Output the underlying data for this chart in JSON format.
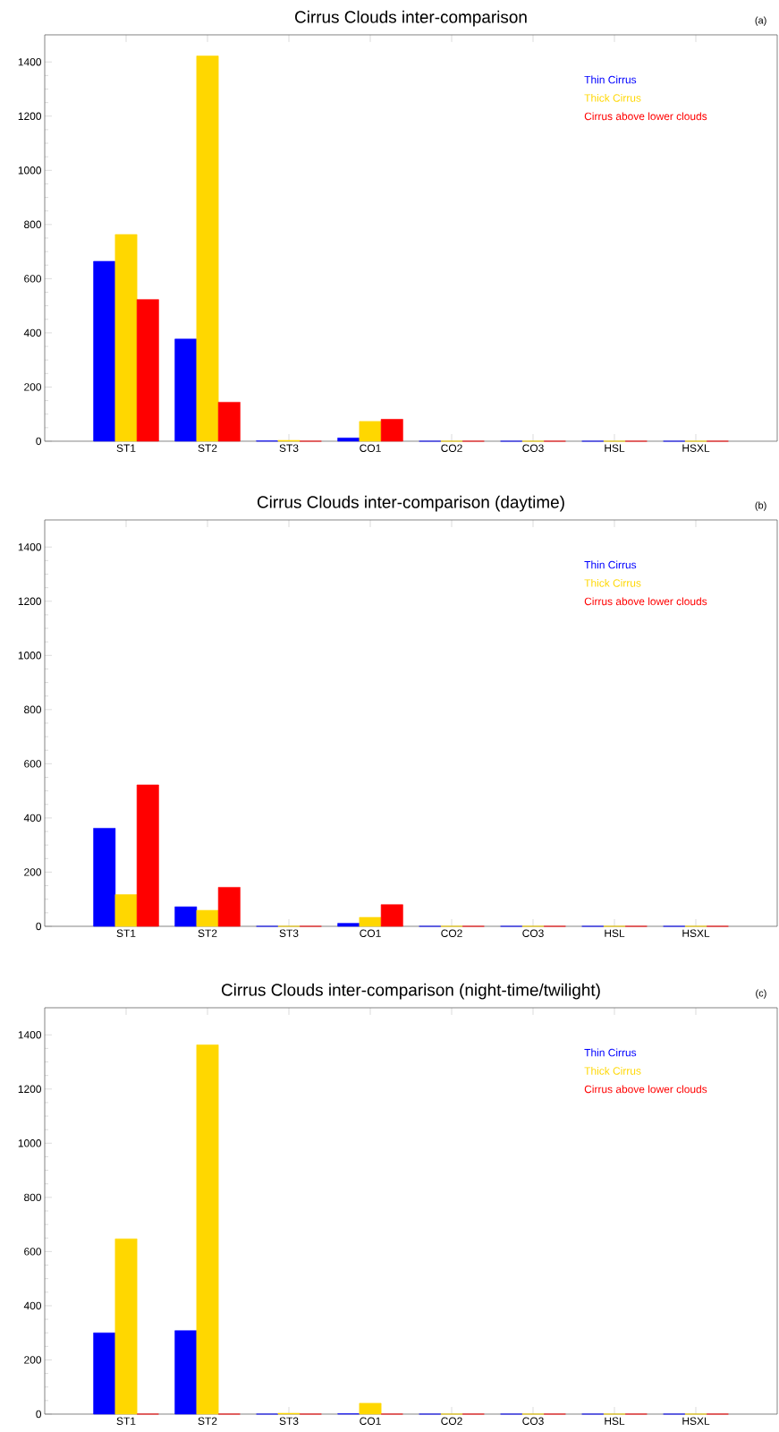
{
  "chart_data": [
    {
      "type": "bar",
      "title": "Cirrus Clouds inter-comparison",
      "annotations": [
        "(a)"
      ],
      "categories": [
        "ST1",
        "ST2",
        "ST3",
        "CO1",
        "CO2",
        "CO3",
        "HSL",
        "HSXL"
      ],
      "series": [
        {
          "name": "Thin Cirrus",
          "color": "#0000ff",
          "values": [
            664,
            377,
            1,
            12,
            0,
            0,
            0,
            0
          ]
        },
        {
          "name": "Thick Cirrus",
          "color": "#ffd700",
          "values": [
            763,
            1422,
            3,
            73,
            0,
            0,
            0,
            0
          ]
        },
        {
          "name": "Cirrus above lower clouds",
          "color": "#ff0000",
          "values": [
            523,
            144,
            0,
            81,
            0,
            0,
            0,
            0
          ]
        }
      ],
      "ylim": [
        0,
        1500
      ],
      "yticks": [
        0,
        200,
        400,
        600,
        800,
        1000,
        1200,
        1400
      ],
      "legend": "top right"
    },
    {
      "type": "bar",
      "title": "Cirrus Clouds inter-comparison (daytime)",
      "annotations": [
        "(b)"
      ],
      "categories": [
        "ST1",
        "ST2",
        "ST3",
        "CO1",
        "CO2",
        "CO3",
        "HSL",
        "HSXL"
      ],
      "series": [
        {
          "name": "Thin Cirrus",
          "color": "#0000ff",
          "values": [
            362,
            72,
            0,
            11,
            0,
            0,
            0,
            0
          ]
        },
        {
          "name": "Thick Cirrus",
          "color": "#ffd700",
          "values": [
            117,
            59,
            0,
            33,
            0,
            0,
            0,
            0
          ]
        },
        {
          "name": "Cirrus above lower clouds",
          "color": "#ff0000",
          "values": [
            522,
            144,
            0,
            80,
            0,
            0,
            0,
            0
          ]
        }
      ],
      "ylim": [
        0,
        1500
      ],
      "yticks": [
        0,
        200,
        400,
        600,
        800,
        1000,
        1200,
        1400
      ],
      "legend": "top right"
    },
    {
      "type": "bar",
      "title": "Cirrus Clouds inter-comparison (night-time/twilight)",
      "annotations": [
        "(c)"
      ],
      "categories": [
        "ST1",
        "ST2",
        "ST3",
        "CO1",
        "CO2",
        "CO3",
        "HSL",
        "HSXL"
      ],
      "series": [
        {
          "name": "Thin Cirrus",
          "color": "#0000ff",
          "values": [
            300,
            308,
            0,
            1,
            0,
            0,
            0,
            0
          ]
        },
        {
          "name": "Thick Cirrus",
          "color": "#ffd700",
          "values": [
            647,
            1363,
            3,
            40,
            0,
            0,
            0,
            0
          ]
        },
        {
          "name": "Cirrus above lower clouds",
          "color": "#ff0000",
          "values": [
            0,
            0,
            0,
            0,
            0,
            0,
            0,
            0
          ]
        }
      ],
      "ylim": [
        0,
        1500
      ],
      "yticks": [
        0,
        200,
        400,
        600,
        800,
        1000,
        1200,
        1400
      ],
      "legend": "top right"
    }
  ]
}
